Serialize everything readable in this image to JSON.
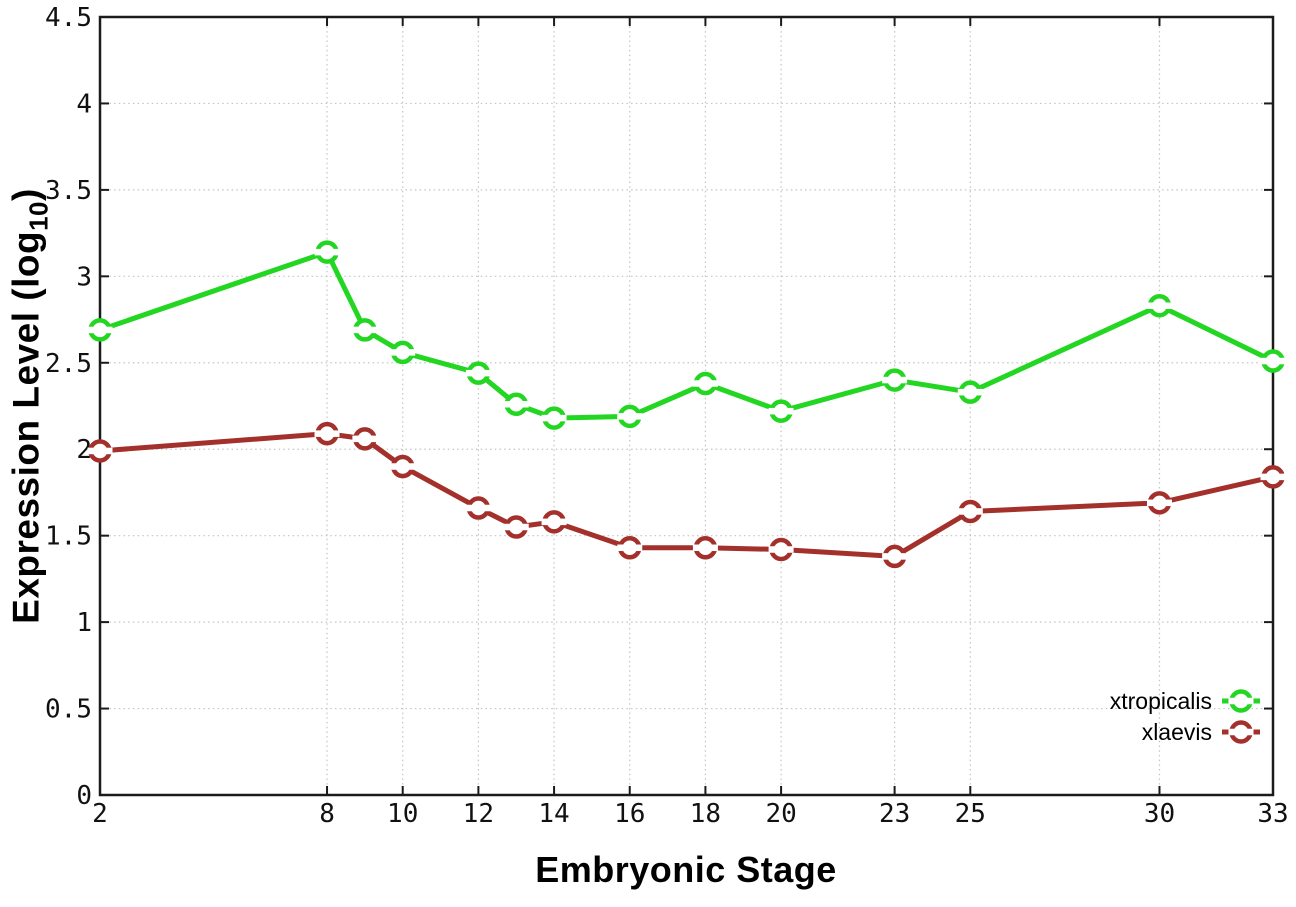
{
  "chart_data": {
    "type": "line",
    "title": "",
    "xlabel": "Embryonic Stage",
    "ylabel": "Expression Level (log10)",
    "ylabel_parts": {
      "prefix": "Expression Level (log",
      "subscript": "10",
      "suffix": ")"
    },
    "xlim": [
      2,
      33
    ],
    "ylim": [
      0,
      4.5
    ],
    "grid": true,
    "legend_position": "bottom-right-inside",
    "x_tick_values": [
      2,
      8,
      10,
      12,
      14,
      16,
      18,
      20,
      23,
      25,
      30,
      33
    ],
    "x_tick_labels": [
      "2",
      "8",
      "10",
      "12",
      "14",
      "16",
      "18",
      "20",
      "23",
      "25",
      "30",
      "33"
    ],
    "y_tick_values": [
      0,
      0.5,
      1,
      1.5,
      2,
      2.5,
      3,
      3.5,
      4,
      4.5
    ],
    "y_tick_labels": [
      "0",
      "0.5",
      "1",
      "1.5",
      "2",
      "2.5",
      "3",
      "3.5",
      "4",
      "4.5"
    ],
    "x": [
      2,
      8,
      9,
      10,
      12,
      13,
      14,
      16,
      18,
      20,
      23,
      25,
      30,
      33
    ],
    "series": [
      {
        "name": "xtropicalis",
        "color": "#22d622",
        "values": [
          2.69,
          3.14,
          2.69,
          2.56,
          2.44,
          2.26,
          2.18,
          2.19,
          2.38,
          2.22,
          2.4,
          2.33,
          2.83,
          2.51
        ]
      },
      {
        "name": "xlaevis",
        "color": "#a3302b",
        "values": [
          1.99,
          2.09,
          2.06,
          1.9,
          1.66,
          1.55,
          1.58,
          1.43,
          1.43,
          1.42,
          1.38,
          1.64,
          1.69,
          1.84
        ]
      }
    ],
    "colors": {
      "background": "#ffffff",
      "axis": "#1b1b1b",
      "grid": "#c4c4c4",
      "tick_text": "#111111"
    }
  }
}
